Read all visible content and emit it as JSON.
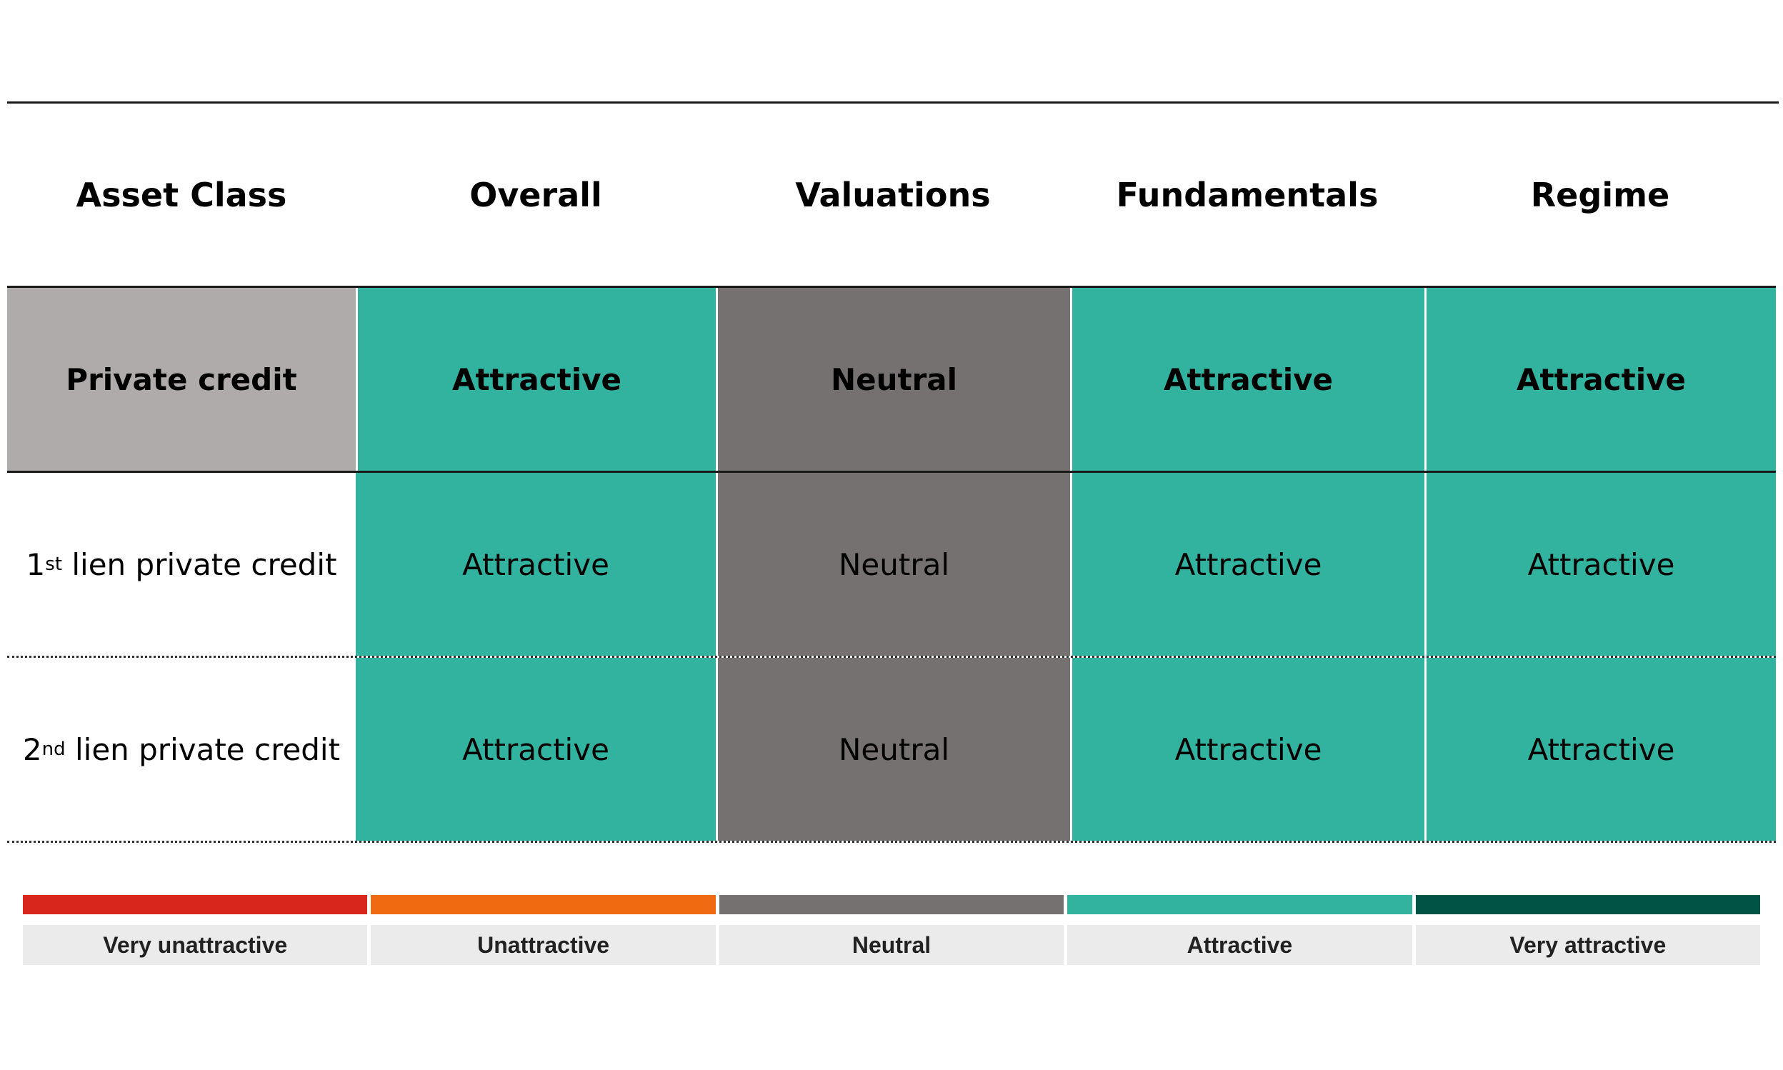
{
  "header": {
    "asset_class": "Asset Class",
    "overall": "Overall",
    "valuations": "Valuations",
    "fundamentals": "Fundamentals",
    "regime": "Regime"
  },
  "rows": [
    {
      "name": "Private credit",
      "overall": "Attractive",
      "valuations": "Neutral",
      "fundamentals": "Attractive",
      "regime": "Attractive"
    },
    {
      "name_prefix": "1",
      "name_sup": "st",
      "name_rest": " lien private credit",
      "overall": "Attractive",
      "valuations": "Neutral",
      "fundamentals": "Attractive",
      "regime": "Attractive"
    },
    {
      "name_prefix": "2",
      "name_sup": "nd",
      "name_rest": " lien private credit",
      "overall": "Attractive",
      "valuations": "Neutral",
      "fundamentals": "Attractive",
      "regime": "Attractive"
    }
  ],
  "legend": [
    {
      "label": "Very unattractive",
      "color": "#d9261c"
    },
    {
      "label": "Unattractive",
      "color": "#f06a12"
    },
    {
      "label": "Neutral",
      "color": "#767171"
    },
    {
      "label": "Attractive",
      "color": "#31b3a0"
    },
    {
      "label": "Very attractive",
      "color": "#005446"
    }
  ],
  "colors": {
    "label_bg": "#afabaa",
    "attractive": "#31b3a0",
    "neutral": "#767171"
  }
}
